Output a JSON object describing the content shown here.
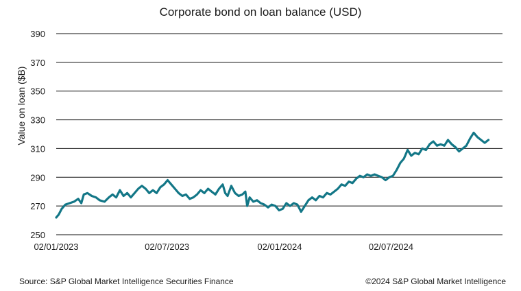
{
  "chart_data": {
    "type": "line",
    "title": "Corporate bond on loan balance (USD)",
    "xlabel": "",
    "ylabel": "Value on loan ($B)",
    "ylim": [
      250,
      390
    ],
    "yticks": [
      250,
      270,
      290,
      310,
      330,
      350,
      370,
      390
    ],
    "xticks": [
      "02/01/2023",
      "02/07/2023",
      "02/01/2024",
      "02/07/2024"
    ],
    "xrange": [
      "2023-01-02",
      "2024-12-31"
    ],
    "grid": "horizontal",
    "legend": "none",
    "line_color": "#137787",
    "series": [
      {
        "name": "",
        "points": [
          [
            "2023-01-02",
            262
          ],
          [
            "2023-01-06",
            264
          ],
          [
            "2023-01-11",
            268
          ],
          [
            "2023-01-17",
            271
          ],
          [
            "2023-01-24",
            272
          ],
          [
            "2023-01-31",
            273
          ],
          [
            "2023-02-07",
            275
          ],
          [
            "2023-02-12",
            272
          ],
          [
            "2023-02-16",
            278
          ],
          [
            "2023-02-22",
            279
          ],
          [
            "2023-03-01",
            277
          ],
          [
            "2023-03-08",
            276
          ],
          [
            "2023-03-14",
            274
          ],
          [
            "2023-03-22",
            273
          ],
          [
            "2023-03-29",
            276
          ],
          [
            "2023-04-04",
            278
          ],
          [
            "2023-04-10",
            276
          ],
          [
            "2023-04-16",
            281
          ],
          [
            "2023-04-22",
            277
          ],
          [
            "2023-04-28",
            279
          ],
          [
            "2023-05-04",
            276
          ],
          [
            "2023-05-10",
            279
          ],
          [
            "2023-05-16",
            282
          ],
          [
            "2023-05-22",
            284
          ],
          [
            "2023-05-28",
            282
          ],
          [
            "2023-06-03",
            279
          ],
          [
            "2023-06-09",
            281
          ],
          [
            "2023-06-15",
            279
          ],
          [
            "2023-06-21",
            283
          ],
          [
            "2023-06-27",
            285
          ],
          [
            "2023-07-03",
            288
          ],
          [
            "2023-07-09",
            285
          ],
          [
            "2023-07-15",
            282
          ],
          [
            "2023-07-21",
            279
          ],
          [
            "2023-07-27",
            277
          ],
          [
            "2023-08-02",
            278
          ],
          [
            "2023-08-08",
            275
          ],
          [
            "2023-08-14",
            276
          ],
          [
            "2023-08-20",
            278
          ],
          [
            "2023-08-26",
            281
          ],
          [
            "2023-09-01",
            279
          ],
          [
            "2023-09-07",
            282
          ],
          [
            "2023-09-13",
            280
          ],
          [
            "2023-09-19",
            278
          ],
          [
            "2023-09-25",
            282
          ],
          [
            "2023-10-01",
            285
          ],
          [
            "2023-10-05",
            279
          ],
          [
            "2023-10-09",
            277
          ],
          [
            "2023-10-15",
            284
          ],
          [
            "2023-10-21",
            279
          ],
          [
            "2023-10-27",
            277
          ],
          [
            "2023-11-02",
            278
          ],
          [
            "2023-11-07",
            280
          ],
          [
            "2023-11-10",
            270
          ],
          [
            "2023-11-14",
            276
          ],
          [
            "2023-11-20",
            273
          ],
          [
            "2023-11-26",
            274
          ],
          [
            "2023-12-02",
            272
          ],
          [
            "2023-12-08",
            271
          ],
          [
            "2023-12-14",
            269
          ],
          [
            "2023-12-20",
            271
          ],
          [
            "2023-12-26",
            270
          ],
          [
            "2024-01-01",
            267
          ],
          [
            "2024-01-07",
            268
          ],
          [
            "2024-01-13",
            272
          ],
          [
            "2024-01-19",
            270
          ],
          [
            "2024-01-25",
            272
          ],
          [
            "2024-01-31",
            271
          ],
          [
            "2024-02-06",
            266
          ],
          [
            "2024-02-12",
            270
          ],
          [
            "2024-02-18",
            274
          ],
          [
            "2024-02-24",
            276
          ],
          [
            "2024-03-01",
            274
          ],
          [
            "2024-03-07",
            277
          ],
          [
            "2024-03-13",
            276
          ],
          [
            "2024-03-19",
            279
          ],
          [
            "2024-03-25",
            278
          ],
          [
            "2024-03-31",
            280
          ],
          [
            "2024-04-06",
            282
          ],
          [
            "2024-04-12",
            285
          ],
          [
            "2024-04-18",
            284
          ],
          [
            "2024-04-24",
            287
          ],
          [
            "2024-04-30",
            286
          ],
          [
            "2024-05-06",
            289
          ],
          [
            "2024-05-12",
            291
          ],
          [
            "2024-05-18",
            290
          ],
          [
            "2024-05-24",
            292
          ],
          [
            "2024-05-30",
            291
          ],
          [
            "2024-06-05",
            292
          ],
          [
            "2024-06-11",
            291
          ],
          [
            "2024-06-17",
            290
          ],
          [
            "2024-06-23",
            288
          ],
          [
            "2024-06-29",
            290
          ],
          [
            "2024-07-05",
            291
          ],
          [
            "2024-07-11",
            295
          ],
          [
            "2024-07-17",
            300
          ],
          [
            "2024-07-23",
            303
          ],
          [
            "2024-07-29",
            309
          ],
          [
            "2024-08-04",
            305
          ],
          [
            "2024-08-10",
            307
          ],
          [
            "2024-08-16",
            306
          ],
          [
            "2024-08-22",
            310
          ],
          [
            "2024-08-28",
            309
          ],
          [
            "2024-09-03",
            313
          ],
          [
            "2024-09-09",
            315
          ],
          [
            "2024-09-15",
            312
          ],
          [
            "2024-09-21",
            313
          ],
          [
            "2024-09-27",
            312
          ],
          [
            "2024-10-03",
            316
          ],
          [
            "2024-10-09",
            313
          ],
          [
            "2024-10-15",
            311
          ],
          [
            "2024-10-21",
            308
          ],
          [
            "2024-10-27",
            310
          ],
          [
            "2024-11-02",
            312
          ],
          [
            "2024-11-08",
            317
          ],
          [
            "2024-11-14",
            321
          ],
          [
            "2024-11-20",
            318
          ],
          [
            "2024-11-26",
            316
          ],
          [
            "2024-12-02",
            314
          ],
          [
            "2024-12-08",
            316
          ]
        ]
      }
    ]
  },
  "footer": {
    "source": "Source: S&P Global Market Intelligence Securities Finance",
    "copyright": "©2024 S&P Global Market Intelligence"
  }
}
